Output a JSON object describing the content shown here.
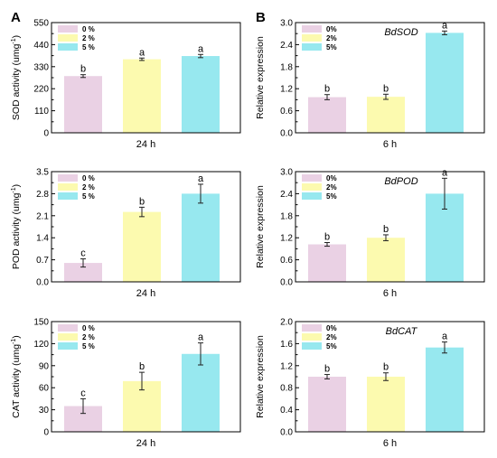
{
  "panel_letters": [
    "A",
    "B"
  ],
  "chart_data": [
    {
      "type": "bar",
      "title": "",
      "xlabel": "",
      "ylabel": "SOD activity (umg-1)",
      "ylim": [
        0,
        550
      ],
      "yticks": [
        "0",
        "110",
        "220",
        "330",
        "440",
        "550"
      ],
      "categories": [
        "24 h"
      ],
      "series": [
        {
          "name": "0 %",
          "color": "#ead1e4",
          "values": [
            283
          ],
          "error": [
            7
          ],
          "sig": [
            "b"
          ]
        },
        {
          "name": "2 %",
          "color": "#fcfaaf",
          "values": [
            367
          ],
          "error": [
            6
          ],
          "sig": [
            "a"
          ]
        },
        {
          "name": "5 %",
          "color": "#97e8ef",
          "values": [
            383
          ],
          "error": [
            8
          ],
          "sig": [
            "a"
          ]
        }
      ],
      "legend": "top-left"
    },
    {
      "type": "bar",
      "title": "BdSOD",
      "xlabel": "",
      "ylabel": "Relative expression",
      "ylim": [
        0,
        3.0
      ],
      "yticks": [
        "0.0",
        "0.6",
        "1.2",
        "1.8",
        "2.4",
        "3.0"
      ],
      "categories": [
        "6 h"
      ],
      "series": [
        {
          "name": "0%",
          "color": "#ead1e4",
          "values": [
            0.97
          ],
          "error": [
            0.07
          ],
          "sig": [
            "b"
          ]
        },
        {
          "name": "2%",
          "color": "#fcfaaf",
          "values": [
            0.98
          ],
          "error": [
            0.07
          ],
          "sig": [
            "b"
          ]
        },
        {
          "name": "5%",
          "color": "#97e8ef",
          "values": [
            2.72
          ],
          "error": [
            0.05
          ],
          "sig": [
            "a"
          ]
        }
      ],
      "legend": "top-left"
    },
    {
      "type": "bar",
      "title": "",
      "xlabel": "",
      "ylabel": "POD activity (umg-1)",
      "ylim": [
        0,
        3.5
      ],
      "yticks": [
        "0.0",
        "0.7",
        "1.4",
        "2.1",
        "2.8",
        "3.5"
      ],
      "categories": [
        "24 h"
      ],
      "series": [
        {
          "name": "0 %",
          "color": "#ead1e4",
          "values": [
            0.6
          ],
          "error": [
            0.13
          ],
          "sig": [
            "c"
          ]
        },
        {
          "name": "2 %",
          "color": "#fcfaaf",
          "values": [
            2.22
          ],
          "error": [
            0.15
          ],
          "sig": [
            "b"
          ]
        },
        {
          "name": "5 %",
          "color": "#97e8ef",
          "values": [
            2.8
          ],
          "error": [
            0.3
          ],
          "sig": [
            "a"
          ]
        }
      ],
      "legend": "top-left"
    },
    {
      "type": "bar",
      "title": "BdPOD",
      "xlabel": "",
      "ylabel": "Relative expression",
      "ylim": [
        0,
        3.0
      ],
      "yticks": [
        "0.0",
        "0.6",
        "1.2",
        "1.8",
        "2.4",
        "3.0"
      ],
      "categories": [
        "6 h"
      ],
      "series": [
        {
          "name": "0%",
          "color": "#ead1e4",
          "values": [
            1.02
          ],
          "error": [
            0.05
          ],
          "sig": [
            "b"
          ]
        },
        {
          "name": "2%",
          "color": "#fcfaaf",
          "values": [
            1.2
          ],
          "error": [
            0.08
          ],
          "sig": [
            "b"
          ]
        },
        {
          "name": "5%",
          "color": "#97e8ef",
          "values": [
            2.4
          ],
          "error": [
            0.42
          ],
          "sig": [
            "a"
          ]
        }
      ],
      "legend": "top-left"
    },
    {
      "type": "bar",
      "title": "",
      "xlabel": "",
      "ylabel": "CAT activity (umg-1)",
      "ylim": [
        0,
        150
      ],
      "yticks": [
        "0",
        "30",
        "60",
        "90",
        "120",
        "150"
      ],
      "categories": [
        "24 h"
      ],
      "series": [
        {
          "name": "0 %",
          "color": "#ead1e4",
          "values": [
            35
          ],
          "error": [
            10
          ],
          "sig": [
            "c"
          ]
        },
        {
          "name": "2 %",
          "color": "#fcfaaf",
          "values": [
            69
          ],
          "error": [
            12
          ],
          "sig": [
            "b"
          ]
        },
        {
          "name": "5 %",
          "color": "#97e8ef",
          "values": [
            106
          ],
          "error": [
            15
          ],
          "sig": [
            "a"
          ]
        }
      ],
      "legend": "top-left"
    },
    {
      "type": "bar",
      "title": "BdCAT",
      "xlabel": "",
      "ylabel": "Relative expression",
      "ylim": [
        0,
        2.0
      ],
      "yticks": [
        "0.0",
        "0.4",
        "0.8",
        "1.2",
        "1.6",
        "2.0"
      ],
      "categories": [
        "6 h"
      ],
      "series": [
        {
          "name": "0%",
          "color": "#ead1e4",
          "values": [
            1.0
          ],
          "error": [
            0.04
          ],
          "sig": [
            "b"
          ]
        },
        {
          "name": "2%",
          "color": "#fcfaaf",
          "values": [
            1.0
          ],
          "error": [
            0.07
          ],
          "sig": [
            "b"
          ]
        },
        {
          "name": "5%",
          "color": "#97e8ef",
          "values": [
            1.53
          ],
          "error": [
            0.1
          ],
          "sig": [
            "a"
          ]
        }
      ],
      "legend": "top-left"
    }
  ]
}
